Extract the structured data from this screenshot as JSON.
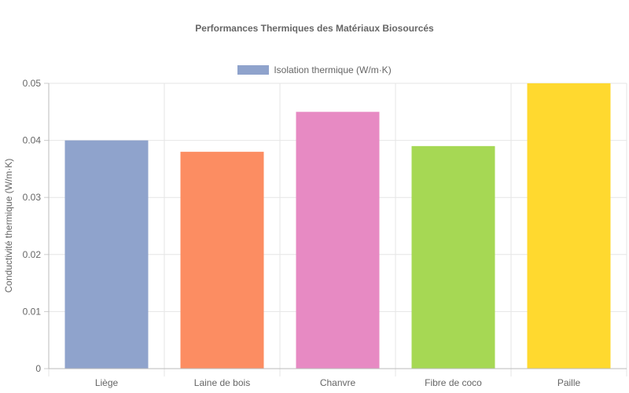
{
  "chart_data": {
    "type": "bar",
    "title": "Performances Thermiques des Matériaux Biosourcés",
    "xlabel": "",
    "ylabel": "Conductivité thermique (W/m·K)",
    "ylim": [
      0,
      0.05
    ],
    "yticks": [
      "0",
      "0.01",
      "0.02",
      "0.03",
      "0.04",
      "0.05"
    ],
    "categories": [
      "Liège",
      "Laine de bois",
      "Chanvre",
      "Fibre de coco",
      "Paille"
    ],
    "series": [
      {
        "name": "Isolation thermique (W/m·K)",
        "values": [
          0.04,
          0.038,
          0.045,
          0.039,
          0.05
        ],
        "colors": [
          "#8fa3cc",
          "#fc8d62",
          "#e78ac3",
          "#a6d854",
          "#ffd92f"
        ]
      }
    ],
    "grid": true,
    "legend_position": "top-center"
  }
}
